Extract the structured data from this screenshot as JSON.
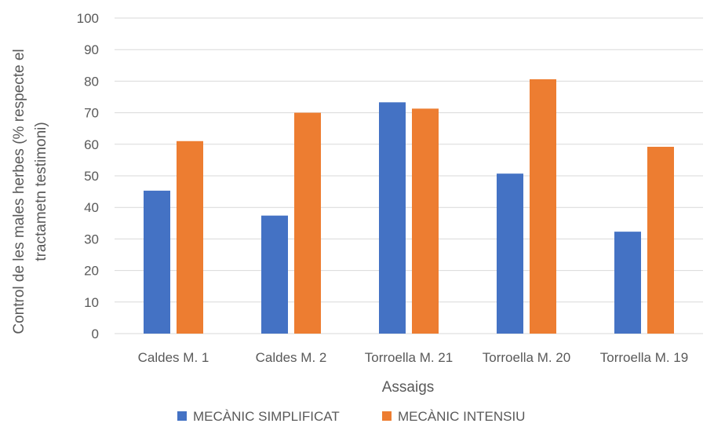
{
  "chart_data": {
    "type": "bar",
    "categories": [
      "Caldes M. 1",
      "Caldes M. 2",
      "Torroella M. 21",
      "Torroella M. 20",
      "Torroella M. 19"
    ],
    "series": [
      {
        "name": "MECÀNIC SIMPLIFICAT",
        "values": [
          45.3,
          37.4,
          73.3,
          50.7,
          32.3
        ],
        "color": "#4472C4"
      },
      {
        "name": "MECÀNIC INTENSIU",
        "values": [
          61.0,
          70.0,
          71.3,
          80.6,
          59.2
        ],
        "color": "#ED7D31"
      }
    ],
    "xlabel": "Assaigs",
    "ylabel_lines": [
      "Control de les males herbes (% respecte el",
      "tractametn testimoni)"
    ],
    "ylim": [
      0,
      100
    ],
    "yticks": [
      0,
      10,
      20,
      30,
      40,
      50,
      60,
      70,
      80,
      90,
      100
    ],
    "grid": true,
    "legend_position": "bottom"
  }
}
